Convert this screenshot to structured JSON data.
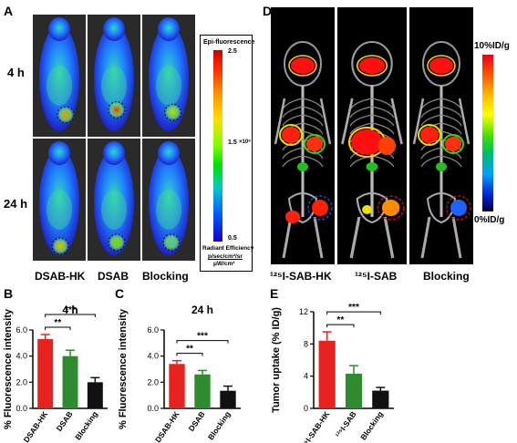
{
  "panels": {
    "A": "A",
    "B": "B",
    "C": "C",
    "D": "D",
    "E": "E"
  },
  "panelA": {
    "row_labels": [
      "4 h",
      "24 h"
    ],
    "col_labels": [
      "DSAB-HK",
      "DSAB",
      "Blocking"
    ],
    "colorbar": {
      "title": "Epi-fluorescence",
      "max": "2.5",
      "mid": "1.5",
      "mid_exp": "×10⁸",
      "min": "0.5",
      "unit_title": "Radiant Efficiency",
      "unit_line1": "p/sec/cm²/sr",
      "unit_line2": "μW/cm²"
    }
  },
  "panelD": {
    "col_labels": [
      "¹²⁵I-SAB-HK",
      "¹²⁵I-SAB",
      "Blocking"
    ],
    "colorbar_max": "10%ID/g",
    "colorbar_min": "0%ID/g"
  },
  "chart_data": [
    {
      "type": "bar",
      "title": "4 h",
      "ylabel": "% Fluorescence intensity",
      "categories": [
        "DSAB-HK",
        "DSAB",
        "Blocking"
      ],
      "values": [
        5.3,
        4.0,
        2.0
      ],
      "errors": [
        0.35,
        0.45,
        0.35
      ],
      "colors": [
        "#e8231f",
        "#2e8b2e",
        "#111111"
      ],
      "ylim": [
        0,
        6
      ],
      "yticks": [
        "0.0",
        "2.0",
        "4.0",
        "6.0"
      ],
      "significance": [
        "**",
        "***"
      ]
    },
    {
      "type": "bar",
      "title": "24 h",
      "ylabel": "% Fluorescence intensity",
      "categories": [
        "DSAB-HK",
        "DSAB",
        "Blocking"
      ],
      "values": [
        3.4,
        2.6,
        1.35
      ],
      "errors": [
        0.25,
        0.3,
        0.35
      ],
      "colors": [
        "#e8231f",
        "#2e8b2e",
        "#111111"
      ],
      "ylim": [
        0,
        6
      ],
      "yticks": [
        "0.0",
        "2.0",
        "4.0",
        "6.0"
      ],
      "significance": [
        "**",
        "***"
      ]
    },
    {
      "type": "bar",
      "title": "",
      "ylabel": "Tumor uptake (% ID/g)",
      "categories": [
        "¹²⁵I-SAB-HK",
        "¹²⁵I-SAB",
        "Blocking"
      ],
      "values": [
        8.4,
        4.3,
        2.2
      ],
      "errors": [
        1.1,
        1.0,
        0.4
      ],
      "colors": [
        "#e8231f",
        "#2e8b2e",
        "#111111"
      ],
      "ylim": [
        0,
        12
      ],
      "yticks": [
        "0",
        "4",
        "8",
        "12"
      ],
      "significance": [
        "**",
        "***"
      ]
    }
  ]
}
